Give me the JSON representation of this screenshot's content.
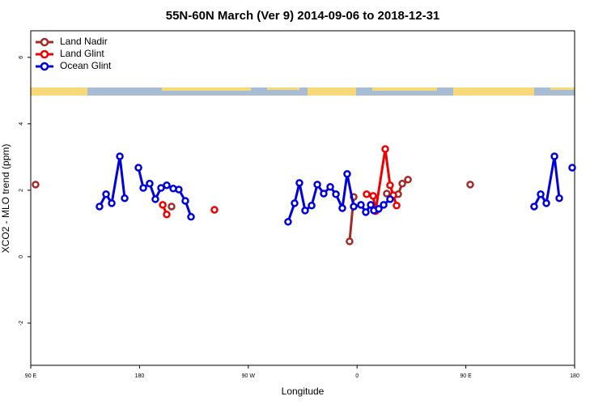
{
  "chart_data": {
    "type": "line",
    "title": "55N-60N March (Ver 9)   2014-09-06 to 2018-12-31",
    "xlabel": "Longitude",
    "ylabel": "XCO2 - MLO trend (ppm)",
    "xlim": [
      90,
      540
    ],
    "ylim": [
      -3.27,
      6.8
    ],
    "xticks": [
      {
        "value": 90,
        "label": "90 E"
      },
      180,
      {
        "value": 270,
        "label": "90 W"
      },
      {
        "value": 360,
        "label": "0"
      },
      {
        "value": 450,
        "label": "90 E"
      },
      {
        "value": 540,
        "label": "180"
      }
    ],
    "yticks": [
      -2,
      0,
      2,
      4,
      6
    ],
    "legend": "top-left",
    "series": [
      {
        "name": "Land Nadir",
        "color": "#a52a2a",
        "x": [
          94.0,
          null,
          206.5,
          null,
          353.8,
          357.2,
          null,
          384.6,
          394.0,
          397.4,
          402.1,
          null,
          453.6
        ],
        "values": [
          2.17,
          null,
          1.51,
          null,
          0.46,
          1.8,
          null,
          1.9,
          1.88,
          2.2,
          2.32,
          null,
          2.17
        ]
      },
      {
        "name": "Land Glint",
        "color": "#ee0000",
        "x": [
          199.2,
          202.5,
          null,
          242.0,
          null,
          367.9,
          373.3,
          375.3,
          383.3,
          387.3,
          390.0,
          392.7
        ],
        "values": [
          1.56,
          1.27,
          null,
          1.41,
          null,
          1.88,
          1.83,
          1.37,
          3.24,
          2.15,
          1.85,
          1.54
        ]
      },
      {
        "name": "Ocean Glint",
        "color": "#0000dd",
        "x": [
          146.9,
          152.3,
          157.0,
          163.7,
          167.7,
          null,
          179.1,
          183.1,
          188.4,
          193.1,
          197.8,
          202.5,
          207.9,
          212.5,
          217.9,
          222.6,
          null,
          302.9,
          308.3,
          312.3,
          317.0,
          322.4,
          327.1,
          332.4,
          337.8,
          342.5,
          347.8,
          351.8,
          357.2,
          363.2,
          367.2,
          371.3,
          373.9,
          377.9,
          382.0,
          387.3,
          null,
          506.5,
          511.9,
          516.6,
          523.3,
          527.3,
          null,
          538.0
        ],
        "values": [
          1.51,
          1.88,
          1.61,
          3.02,
          1.76,
          null,
          2.68,
          2.07,
          2.2,
          1.73,
          2.07,
          2.15,
          2.05,
          2.02,
          1.68,
          1.2,
          null,
          1.05,
          1.61,
          2.22,
          1.39,
          1.54,
          2.17,
          1.9,
          2.1,
          1.88,
          1.46,
          2.49,
          1.51,
          1.56,
          1.34,
          1.56,
          1.39,
          1.44,
          1.56,
          1.73,
          null,
          1.51,
          1.88,
          1.61,
          3.02,
          1.76,
          null,
          2.68
        ]
      }
    ]
  }
}
